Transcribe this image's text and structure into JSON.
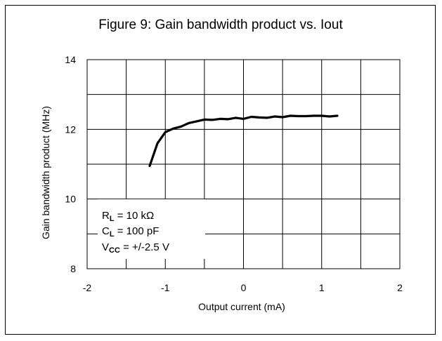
{
  "chart_data": {
    "type": "line",
    "title": "Figure 9: Gain bandwidth product vs. Iout",
    "xlabel": "Output  current (mA)",
    "ylabel": "Gain bandwidth product (MHz)",
    "xlim": [
      -2,
      2
    ],
    "ylim": [
      8,
      14
    ],
    "grid": true,
    "x_ticks": [
      -2,
      -1,
      0,
      1,
      2
    ],
    "y_ticks": [
      8,
      10,
      12,
      14
    ],
    "x_tick_labels": [
      "-2",
      "-1",
      "0",
      "1",
      "2"
    ],
    "y_tick_labels": [
      "8",
      "10",
      "12",
      "14"
    ],
    "series": [
      {
        "x": [
          -1.2,
          -1.1,
          -1.0,
          -0.9,
          -0.8,
          -0.7,
          -0.6,
          -0.5,
          -0.4,
          -0.3,
          -0.2,
          -0.1,
          0.0,
          0.1,
          0.2,
          0.3,
          0.4,
          0.5,
          0.6,
          0.7,
          0.8,
          0.9,
          1.0,
          1.1,
          1.2
        ],
        "y": [
          10.95,
          11.6,
          11.92,
          12.02,
          12.08,
          12.18,
          12.23,
          12.28,
          12.27,
          12.3,
          12.29,
          12.33,
          12.3,
          12.36,
          12.34,
          12.33,
          12.37,
          12.35,
          12.39,
          12.38,
          12.38,
          12.39,
          12.39,
          12.37,
          12.39
        ]
      }
    ],
    "annotations": [
      {
        "main": "R",
        "sub": "L",
        "rest": " = 10 kΩ"
      },
      {
        "main": "C",
        "sub": "L",
        "rest": " = 100 pF"
      },
      {
        "main": "V",
        "sub": "CC",
        "rest": " = +/-2.5 V"
      }
    ]
  },
  "colors": {
    "line": "#000000",
    "grid": "#000000",
    "background": "#ffffff"
  }
}
